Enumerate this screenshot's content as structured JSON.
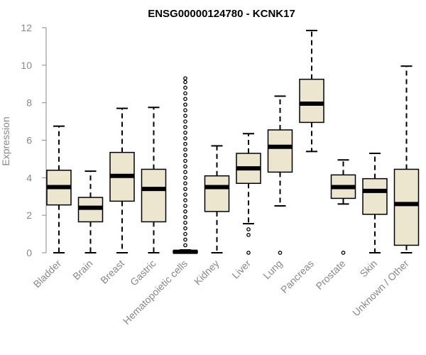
{
  "chart_data": {
    "type": "boxplot",
    "title": "ENSG00000124780 - KCNK17",
    "xlabel": "",
    "ylabel": "Expression",
    "ylim": [
      0,
      12
    ],
    "yticks": [
      "0",
      "2",
      "4",
      "6",
      "8",
      "10",
      "12"
    ],
    "grid": false,
    "colors": {
      "box_fill": "#ede6cf",
      "box_stroke": "#000000",
      "axis": "#888888",
      "text": "#888888"
    },
    "categories": [
      "Bladder",
      "Brain",
      "Breast",
      "Gastric",
      "Hematopoietic cells",
      "Kidney",
      "Liver",
      "Lung",
      "Pancreas",
      "Prostate",
      "Skin",
      "Unknown / Other"
    ],
    "boxes": [
      {
        "min": 0,
        "q1": 2.55,
        "median": 3.5,
        "q3": 4.4,
        "max": 6.75,
        "outliers": []
      },
      {
        "min": 0,
        "q1": 1.65,
        "median": 2.4,
        "q3": 2.95,
        "max": 4.35,
        "outliers": []
      },
      {
        "min": 0,
        "q1": 2.75,
        "median": 4.1,
        "q3": 5.35,
        "max": 7.7,
        "outliers": []
      },
      {
        "min": 0,
        "q1": 1.65,
        "median": 3.4,
        "q3": 4.45,
        "max": 7.75,
        "outliers": []
      },
      {
        "min": 0,
        "q1": 0,
        "median": 0.05,
        "q3": 0.1,
        "max": 0.15,
        "outliers": [
          0.4,
          0.7,
          1.0,
          1.3,
          1.6,
          1.9,
          2.2,
          2.5,
          2.8,
          3.1,
          3.4,
          3.7,
          4.0,
          4.3,
          4.6,
          4.9,
          5.2,
          5.5,
          5.8,
          6.1,
          6.4,
          6.7,
          7.0,
          7.3,
          7.6,
          7.9,
          8.2,
          8.5,
          8.8,
          9.1,
          9.3
        ]
      },
      {
        "min": 0,
        "q1": 2.2,
        "median": 3.5,
        "q3": 4.1,
        "max": 5.7,
        "outliers": []
      },
      {
        "min": 1.55,
        "q1": 3.7,
        "median": 4.5,
        "q3": 5.3,
        "max": 6.35,
        "outliers": [
          0,
          0.95,
          1.25
        ]
      },
      {
        "min": 2.5,
        "q1": 4.3,
        "median": 5.65,
        "q3": 6.55,
        "max": 8.35,
        "outliers": [
          0
        ]
      },
      {
        "min": 5.4,
        "q1": 6.95,
        "median": 7.95,
        "q3": 9.25,
        "max": 11.85,
        "outliers": []
      },
      {
        "min": 2.6,
        "q1": 2.9,
        "median": 3.5,
        "q3": 4.15,
        "max": 4.95,
        "outliers": [
          0
        ]
      },
      {
        "min": 0,
        "q1": 2.05,
        "median": 3.3,
        "q3": 3.95,
        "max": 5.3,
        "outliers": []
      },
      {
        "min": 0,
        "q1": 0.4,
        "median": 2.6,
        "q3": 4.45,
        "max": 9.95,
        "outliers": []
      }
    ]
  }
}
